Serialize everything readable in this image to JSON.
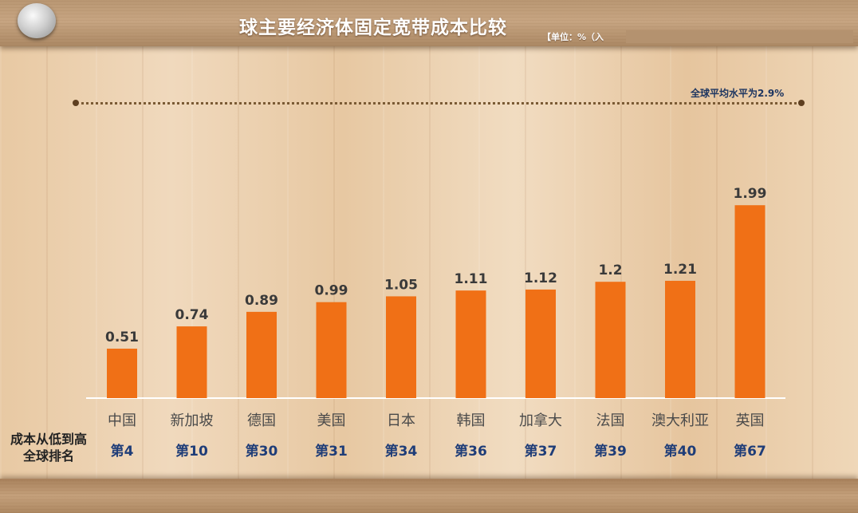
{
  "header": {
    "title": "球主要经济体固定宽带成本比较",
    "unit_note": "【单位：%（入"
  },
  "average_note": "全球平均水平为2.9%",
  "row_caption": "成本从低到高\n全球排名",
  "chart_data": {
    "type": "bar",
    "title": "球主要经济体固定宽带成本比较",
    "categories": [
      "中国",
      "新加坡",
      "德国",
      "美国",
      "日本",
      "韩国",
      "加拿大",
      "法国",
      "澳大利亚",
      "英国"
    ],
    "values": [
      0.51,
      0.74,
      0.89,
      0.99,
      1.05,
      1.11,
      1.12,
      1.2,
      1.21,
      1.99
    ],
    "value_labels": [
      "0.51",
      "0.74",
      "0.89",
      "0.99",
      "1.05",
      "1.11",
      "1.12",
      "1.2",
      "1.21",
      "1.99"
    ],
    "ranks": [
      "第4",
      "第10",
      "第30",
      "第31",
      "第34",
      "第36",
      "第37",
      "第39",
      "第40",
      "第67"
    ],
    "reference_line": {
      "value": 2.9,
      "label": "全球平均水平为2.9%"
    },
    "ylim": [
      0,
      2.9
    ],
    "grid": false,
    "bar_color": "#f07016",
    "rank_color": "#1f3d78"
  }
}
